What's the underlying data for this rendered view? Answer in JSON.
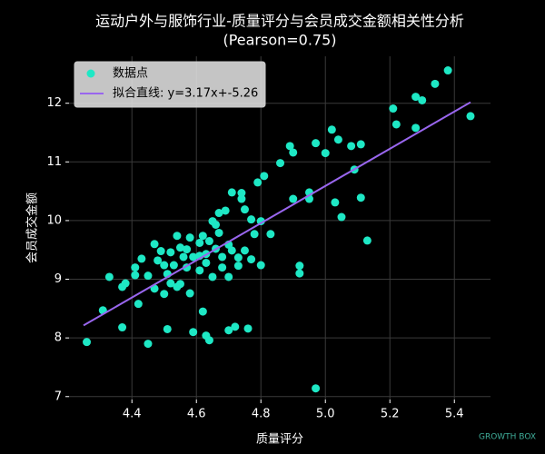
{
  "chart_data": {
    "type": "scatter",
    "title": "运动户外与服饰行业-质量评分与会员成交金额相关性分析",
    "subtitle": "(Pearson=0.75)",
    "xlabel": "质量评分",
    "ylabel": "会员成交金额",
    "xlim": [
      4.205,
      5.512
    ],
    "ylim": [
      6.95,
      12.8
    ],
    "xticks": [
      4.4,
      4.6,
      4.8,
      {
        "value": 5,
        "label": "5.0"
      },
      5.2,
      5.4
    ],
    "yticks": [
      7,
      8,
      9,
      10,
      11,
      12
    ],
    "grid": true,
    "legend": "upper left",
    "watermark": "GROWTH BOX",
    "series": [
      {
        "name": "数据点",
        "color": "#1ee8c5",
        "x": [
          4.26,
          4.31,
          4.33,
          4.37,
          4.37,
          4.38,
          4.41,
          4.41,
          4.42,
          4.43,
          4.45,
          4.45,
          4.47,
          4.47,
          4.48,
          4.49,
          4.5,
          4.5,
          4.51,
          4.52,
          4.52,
          4.53,
          4.54,
          4.54,
          4.55,
          4.56,
          4.57,
          4.58,
          4.58,
          4.59,
          4.59,
          4.61,
          4.61,
          4.62,
          4.62,
          4.63,
          4.64,
          4.63,
          4.64,
          4.65,
          4.65,
          4.66,
          4.67,
          4.67,
          4.68,
          4.68,
          4.69,
          4.7,
          4.7,
          4.71,
          4.71,
          4.72,
          4.73,
          4.73,
          4.74,
          4.74,
          4.75,
          4.75,
          4.76,
          4.77,
          4.77,
          4.78,
          4.79,
          4.8,
          4.8,
          4.81,
          4.83,
          4.86,
          4.89,
          4.9,
          4.9,
          4.92,
          4.92,
          4.95,
          4.95,
          4.97,
          4.97,
          5.0,
          5.02,
          5.03,
          5.04,
          5.05,
          5.08,
          5.09,
          5.11,
          5.11,
          5.13,
          5.21,
          5.22,
          5.28,
          5.28,
          5.3,
          5.34,
          5.38,
          5.45,
          4.57,
          4.61,
          4.66,
          4.7,
          4.63,
          4.51,
          4.55
        ],
        "values": [
          7.93,
          8.47,
          9.04,
          8.87,
          8.18,
          8.93,
          9.07,
          9.2,
          8.58,
          9.35,
          9.06,
          7.9,
          8.84,
          9.6,
          9.32,
          9.48,
          8.75,
          9.24,
          8.15,
          9.46,
          8.93,
          9.24,
          8.87,
          9.74,
          9.54,
          9.38,
          9.2,
          8.76,
          9.71,
          8.1,
          9.38,
          9.4,
          9.15,
          8.45,
          9.74,
          8.04,
          7.96,
          9.28,
          9.65,
          9.99,
          9.04,
          9.52,
          10.13,
          9.79,
          9.2,
          9.38,
          10.17,
          8.13,
          9.04,
          9.49,
          10.48,
          8.19,
          9.37,
          9.23,
          10.37,
          10.47,
          10.19,
          9.49,
          8.16,
          9.34,
          10.02,
          9.77,
          10.65,
          9.24,
          9.99,
          10.76,
          9.77,
          10.98,
          11.27,
          11.16,
          10.37,
          9.23,
          9.1,
          10.48,
          10.37,
          11.32,
          7.14,
          11.15,
          11.55,
          10.31,
          11.38,
          10.06,
          11.27,
          10.87,
          10.39,
          11.3,
          9.66,
          11.91,
          11.64,
          11.58,
          12.11,
          12.05,
          12.33,
          12.56,
          11.78,
          9.51,
          9.62,
          9.93,
          9.59,
          9.43,
          9.09,
          8.92
        ]
      }
    ],
    "fit_line": {
      "name": "拟合直线: y=3.17x+-5.26",
      "color": "#9966ee",
      "x": [
        4.25,
        5.45
      ],
      "values": [
        8.2125,
        12.0165
      ]
    }
  }
}
